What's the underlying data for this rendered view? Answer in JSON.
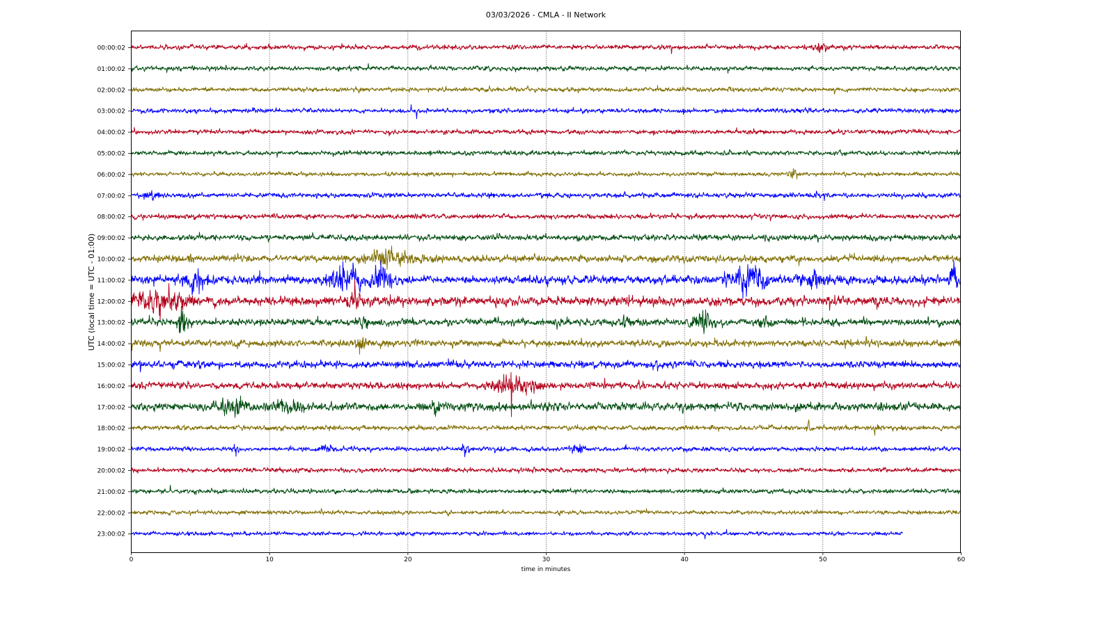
{
  "chart_data": {
    "type": "line",
    "title": "03/03/2026 - CMLA - II Network",
    "xlabel": "time in minutes",
    "ylabel": "UTC (local time = UTC - 01:00)",
    "xlim": [
      0,
      60
    ],
    "xticks": [
      0,
      10,
      20,
      30,
      40,
      50,
      60
    ],
    "grid": "vertical dotted",
    "colors": [
      "#b2001a",
      "#004d10",
      "#7f6d00",
      "#0000ff"
    ],
    "rows": [
      {
        "label": "00:00:02",
        "color": "#b2001a",
        "amp": 4.5,
        "end": 60,
        "bursts": [
          {
            "t": 49.8,
            "a": 7,
            "w": 0.8
          }
        ]
      },
      {
        "label": "01:00:02",
        "color": "#004d10",
        "amp": 4.5,
        "end": 60,
        "bursts": []
      },
      {
        "label": "02:00:02",
        "color": "#7f6d00",
        "amp": 4.5,
        "end": 60,
        "bursts": []
      },
      {
        "label": "03:00:02",
        "color": "#0000ff",
        "amp": 4.5,
        "end": 60,
        "bursts": []
      },
      {
        "label": "04:00:02",
        "color": "#b2001a",
        "amp": 4.5,
        "end": 60,
        "bursts": []
      },
      {
        "label": "05:00:02",
        "color": "#004d10",
        "amp": 4.5,
        "end": 60,
        "bursts": []
      },
      {
        "label": "06:00:02",
        "color": "#7f6d00",
        "amp": 4.0,
        "end": 60,
        "bursts": [
          {
            "t": 47.8,
            "a": 8,
            "w": 0.3
          }
        ]
      },
      {
        "label": "07:00:02",
        "color": "#0000ff",
        "amp": 5.0,
        "end": 60,
        "bursts": [
          {
            "t": 1.5,
            "a": 7,
            "w": 0.8
          }
        ]
      },
      {
        "label": "08:00:02",
        "color": "#b2001a",
        "amp": 5.0,
        "end": 60,
        "bursts": []
      },
      {
        "label": "09:00:02",
        "color": "#004d10",
        "amp": 6.0,
        "end": 60,
        "bursts": []
      },
      {
        "label": "10:00:02",
        "color": "#7f6d00",
        "amp": 7.0,
        "end": 60,
        "bursts": [
          {
            "t": 18.5,
            "a": 16,
            "w": 1.6
          }
        ]
      },
      {
        "label": "11:00:02",
        "color": "#0000ff",
        "amp": 9.0,
        "end": 60,
        "bursts": [
          {
            "t": 4.5,
            "a": 16,
            "w": 0.8
          },
          {
            "t": 15.5,
            "a": 22,
            "w": 1.2
          },
          {
            "t": 18.2,
            "a": 24,
            "w": 0.6
          },
          {
            "t": 44.8,
            "a": 24,
            "w": 1.3
          },
          {
            "t": 49.5,
            "a": 14,
            "w": 1.0
          },
          {
            "t": 59.5,
            "a": 30,
            "w": 0.3
          }
        ]
      },
      {
        "label": "12:00:02",
        "color": "#b2001a",
        "amp": 9.0,
        "end": 60,
        "bursts": [
          {
            "t": 2.0,
            "a": 18,
            "w": 2.0
          },
          {
            "t": 16.2,
            "a": 12,
            "w": 0.6
          }
        ]
      },
      {
        "label": "13:00:02",
        "color": "#004d10",
        "amp": 7.0,
        "end": 60,
        "bursts": [
          {
            "t": 3.7,
            "a": 38,
            "w": 0.25
          },
          {
            "t": 16.7,
            "a": 11,
            "w": 0.4
          },
          {
            "t": 35.8,
            "a": 13,
            "w": 0.4
          },
          {
            "t": 41.3,
            "a": 16,
            "w": 0.7
          },
          {
            "t": 45.9,
            "a": 10,
            "w": 0.4
          }
        ]
      },
      {
        "label": "14:00:02",
        "color": "#7f6d00",
        "amp": 7.0,
        "end": 60,
        "bursts": [
          {
            "t": 16.7,
            "a": 13,
            "w": 0.3
          }
        ]
      },
      {
        "label": "15:00:02",
        "color": "#0000ff",
        "amp": 7.0,
        "end": 60,
        "bursts": []
      },
      {
        "label": "16:00:02",
        "color": "#b2001a",
        "amp": 7.0,
        "end": 60,
        "bursts": [
          {
            "t": 27.3,
            "a": 20,
            "w": 1.0
          },
          {
            "t": 29.0,
            "a": 11,
            "w": 0.8
          }
        ]
      },
      {
        "label": "17:00:02",
        "color": "#004d10",
        "amp": 8.0,
        "end": 60,
        "bursts": [
          {
            "t": 7.4,
            "a": 12,
            "w": 1.0
          },
          {
            "t": 11.2,
            "a": 11,
            "w": 1.0
          },
          {
            "t": 22.0,
            "a": 10,
            "w": 0.6
          }
        ]
      },
      {
        "label": "18:00:02",
        "color": "#7f6d00",
        "amp": 5.0,
        "end": 60,
        "bursts": [
          {
            "t": 49.0,
            "a": 9,
            "w": 0.2
          },
          {
            "t": 53.8,
            "a": 9,
            "w": 0.2
          }
        ]
      },
      {
        "label": "19:00:02",
        "color": "#0000ff",
        "amp": 4.5,
        "end": 60,
        "bursts": [
          {
            "t": 7.6,
            "a": 10,
            "w": 0.2
          },
          {
            "t": 14.3,
            "a": 8,
            "w": 0.4
          },
          {
            "t": 24.2,
            "a": 11,
            "w": 0.3
          },
          {
            "t": 32.3,
            "a": 9,
            "w": 0.4
          }
        ]
      },
      {
        "label": "20:00:02",
        "color": "#b2001a",
        "amp": 4.5,
        "end": 60,
        "bursts": []
      },
      {
        "label": "21:00:02",
        "color": "#004d10",
        "amp": 4.5,
        "end": 60,
        "bursts": []
      },
      {
        "label": "22:00:02",
        "color": "#7f6d00",
        "amp": 4.0,
        "end": 60,
        "bursts": []
      },
      {
        "label": "23:00:02",
        "color": "#0000ff",
        "amp": 4.0,
        "end": 55.8,
        "bursts": []
      }
    ]
  }
}
